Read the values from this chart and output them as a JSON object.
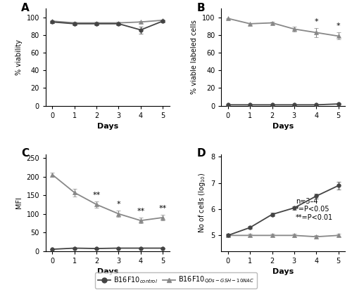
{
  "days": [
    0,
    1,
    2,
    3,
    4,
    5
  ],
  "A_control_mean": [
    95,
    93,
    93,
    93,
    86,
    96
  ],
  "A_control_err": [
    1,
    1,
    1,
    1,
    4,
    1
  ],
  "A_qds_mean": [
    96,
    94,
    94,
    94,
    95,
    97
  ],
  "A_qds_err": [
    0.5,
    1,
    1,
    1,
    1,
    0.5
  ],
  "B_control_mean": [
    1,
    1,
    1,
    1,
    1,
    2
  ],
  "B_control_err": [
    0.3,
    0.3,
    0.3,
    0.3,
    0.4,
    0.5
  ],
  "B_qds_mean": [
    99,
    93,
    94,
    87,
    83,
    79
  ],
  "B_qds_err": [
    0.5,
    1,
    1,
    3,
    5,
    4
  ],
  "B_sig_days": [
    4,
    5
  ],
  "B_sig_text": [
    "*",
    "*"
  ],
  "C_control_mean": [
    5,
    8,
    7,
    8,
    8,
    8
  ],
  "C_control_err": [
    1,
    1,
    1,
    1,
    1,
    1
  ],
  "C_qds_mean": [
    205,
    157,
    125,
    100,
    82,
    90
  ],
  "C_qds_err": [
    5,
    10,
    8,
    8,
    8,
    7
  ],
  "C_sig_days": [
    2,
    3,
    4,
    5
  ],
  "C_sig_text": [
    "**",
    "*",
    "**",
    "**"
  ],
  "D_control_mean": [
    5.0,
    5.3,
    5.8,
    6.05,
    6.5,
    6.9
  ],
  "D_control_err": [
    0.05,
    0.05,
    0.07,
    0.07,
    0.1,
    0.15
  ],
  "D_qds_mean": [
    5.0,
    5.0,
    5.0,
    5.0,
    4.95,
    5.0
  ],
  "D_qds_err": [
    0.05,
    0.05,
    0.05,
    0.07,
    0.07,
    0.05
  ],
  "control_color": "#444444",
  "qds_color": "#888888",
  "control_marker": "o",
  "qds_marker": "^",
  "line_width": 1.3,
  "marker_size": 4,
  "marker_size_legend": 5,
  "legend_label_control": "B16F10$_{control}$",
  "legend_label_qds": "B16F10$_{QDs-GSH-10NAC}$",
  "panel_labels": [
    "A",
    "B",
    "C",
    "D"
  ],
  "xlabel": "Days",
  "A_ylabel": "% viability",
  "B_ylabel": "% viable labeled cells",
  "C_ylabel": "MFI",
  "D_ylabel": "No of cells (log$_{10}$)",
  "A_ylim": [
    0,
    110
  ],
  "B_ylim": [
    0,
    110
  ],
  "C_ylim": [
    0,
    260
  ],
  "D_ylim": [
    4.4,
    8.1
  ],
  "A_yticks": [
    0,
    20,
    40,
    60,
    80,
    100
  ],
  "B_yticks": [
    0,
    20,
    40,
    60,
    80,
    100
  ],
  "C_yticks": [
    0,
    50,
    100,
    150,
    200,
    250
  ],
  "D_yticks": [
    5,
    6,
    7,
    8
  ],
  "note_text": "n=3–4\n*=P<0.05\n**=P<0.01",
  "bg_color": "#ffffff"
}
